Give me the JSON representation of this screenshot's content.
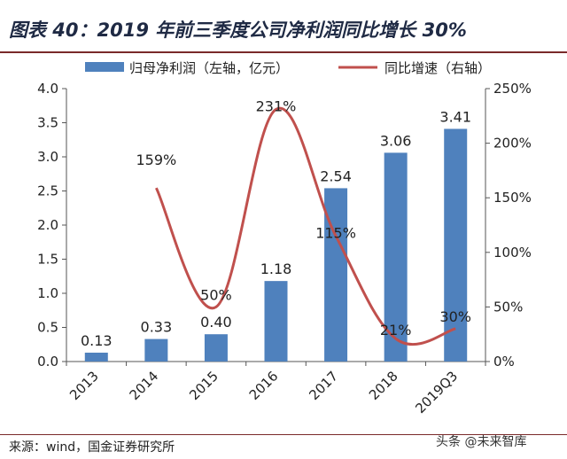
{
  "title": "图表 40：2019 年前三季度公司净利润同比增长 30%",
  "source": "来源：wind，国金证券研究所",
  "watermark": "头条 @未来智库",
  "chart_data": {
    "type": "bar+line",
    "categories": [
      "2013",
      "2014",
      "2015",
      "2016",
      "2017",
      "2018",
      "2019Q3"
    ],
    "series": [
      {
        "name": "归母净利润（左轴，亿元）",
        "type": "bar",
        "axis": "left",
        "color": "#4f81bd",
        "values": [
          0.13,
          0.33,
          0.4,
          1.18,
          2.54,
          3.06,
          3.41
        ],
        "labels": [
          "0.13",
          "0.33",
          "0.40",
          "1.18",
          "2.54",
          "3.06",
          "3.41"
        ]
      },
      {
        "name": "同比增速（右轴）",
        "type": "line",
        "axis": "right",
        "color": "#c0504d",
        "values": [
          null,
          159,
          50,
          231,
          115,
          21,
          30
        ],
        "labels": [
          "",
          "159%",
          "50%",
          "231%",
          "115%",
          "21%",
          "30%"
        ]
      }
    ],
    "y_left": {
      "min": 0,
      "max": 4.0,
      "ticks": [
        "0.0",
        "0.5",
        "1.0",
        "1.5",
        "2.0",
        "2.5",
        "3.0",
        "3.5",
        "4.0"
      ]
    },
    "y_right": {
      "min": 0,
      "max": 250,
      "ticks": [
        "0%",
        "50%",
        "100%",
        "150%",
        "200%",
        "250%"
      ]
    },
    "legend_position": "top",
    "grid": false
  }
}
